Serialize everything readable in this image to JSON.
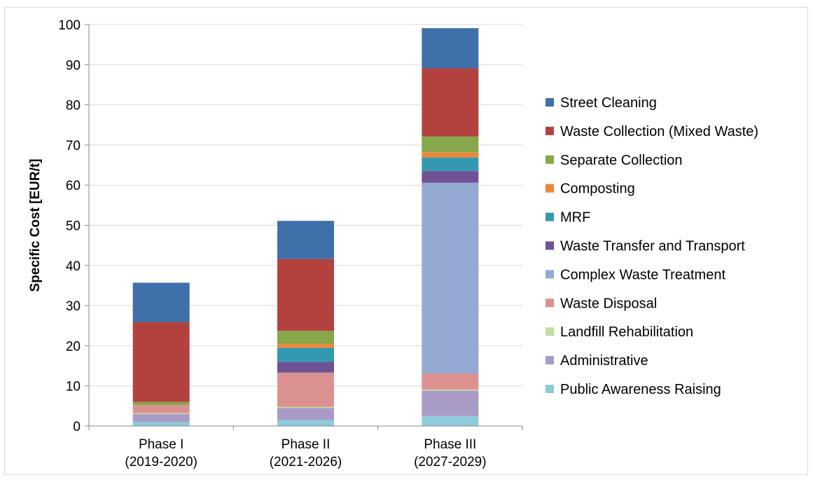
{
  "chart_data": {
    "type": "bar",
    "stacked": true,
    "ylabel": "Specific Cost [EUR/t]",
    "xlabel": "",
    "ylim": [
      0,
      100
    ],
    "yticks": [
      0,
      10,
      20,
      30,
      40,
      50,
      60,
      70,
      80,
      90,
      100
    ],
    "grid": true,
    "legend_position": "right",
    "categories": [
      [
        "Phase I",
        "(2019-2020)"
      ],
      [
        "Phase II",
        "(2021-2026)"
      ],
      [
        "Phase III",
        "(2027-2029)"
      ]
    ],
    "series": [
      {
        "name": "Public Awareness Raising",
        "color": "#8ecbdb",
        "values": [
          1.0,
          1.5,
          2.5
        ]
      },
      {
        "name": "Administrative",
        "color": "#a99bc6",
        "values": [
          2.0,
          3.0,
          6.3
        ]
      },
      {
        "name": "Landfill Rehabilitation",
        "color": "#c3dca2",
        "values": [
          0.2,
          0.3,
          0.3
        ]
      },
      {
        "name": "Waste Disposal",
        "color": "#db9190",
        "values": [
          2.0,
          8.5,
          4.0
        ]
      },
      {
        "name": "Complex Waste Treatment",
        "color": "#94aad2",
        "values": [
          0.0,
          0.0,
          47.5
        ]
      },
      {
        "name": "Waste Transfer and Transport",
        "color": "#6f5295",
        "values": [
          0.0,
          2.7,
          2.9
        ]
      },
      {
        "name": "MRF",
        "color": "#3299b0",
        "values": [
          0.0,
          3.5,
          3.4
        ]
      },
      {
        "name": "Composting",
        "color": "#ed8738",
        "values": [
          0.0,
          1.0,
          1.3
        ]
      },
      {
        "name": "Separate Collection",
        "color": "#86a84a",
        "values": [
          0.8,
          3.2,
          3.9
        ]
      },
      {
        "name": "Waste Collection (Mixed Waste)",
        "color": "#b3423f",
        "values": [
          19.9,
          17.9,
          17.0
        ]
      },
      {
        "name": "Street Cleaning",
        "color": "#3f70aa",
        "values": [
          9.8,
          9.5,
          10.0
        ]
      }
    ],
    "legend_order": [
      "Street Cleaning",
      "Waste Collection (Mixed Waste)",
      "Separate Collection",
      "Composting",
      "MRF",
      "Waste Transfer and Transport",
      "Complex Waste Treatment",
      "Waste Disposal",
      "Landfill Rehabilitation",
      "Administrative",
      "Public Awareness Raising"
    ]
  }
}
